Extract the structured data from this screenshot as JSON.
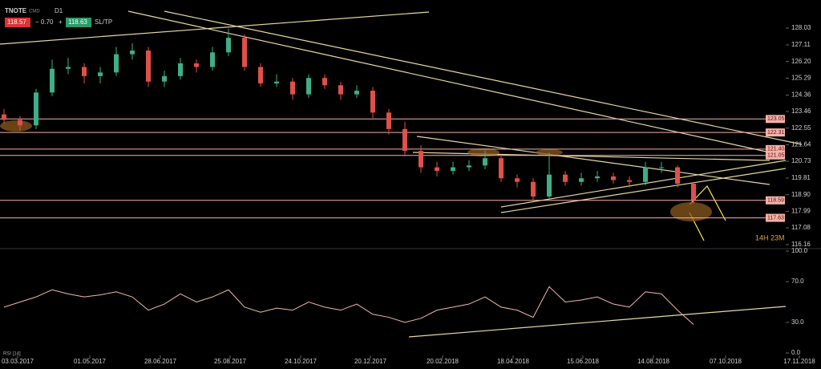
{
  "toolbar": {
    "symbol": "TNOTE",
    "market": "CMD",
    "timeframe": "D1",
    "bid": "118.57",
    "change": "− 0.70",
    "plus": "+",
    "ask": "118.63",
    "sltp": "SL/TP"
  },
  "chart_data": [
    {
      "type": "candlestick",
      "annotation": "14H 23M",
      "up_color": "#3fae8a",
      "down_color": "#e0504a",
      "ohlc": [
        [
          123.3,
          123.6,
          122.8,
          123.0
        ],
        [
          123.0,
          123.2,
          122.4,
          122.7
        ],
        [
          122.7,
          124.7,
          122.5,
          124.5
        ],
        [
          124.5,
          126.3,
          124.3,
          125.8
        ],
        [
          125.8,
          126.4,
          125.5,
          125.9
        ],
        [
          125.9,
          126.1,
          125.0,
          125.4
        ],
        [
          125.4,
          125.9,
          125.0,
          125.6
        ],
        [
          125.6,
          127.0,
          125.4,
          126.6
        ],
        [
          126.6,
          127.2,
          126.3,
          126.8
        ],
        [
          126.8,
          127.0,
          124.8,
          125.1
        ],
        [
          125.1,
          125.7,
          124.8,
          125.4
        ],
        [
          125.4,
          126.4,
          125.2,
          126.1
        ],
        [
          126.1,
          126.3,
          125.6,
          125.9
        ],
        [
          125.9,
          127.0,
          125.7,
          126.7
        ],
        [
          126.7,
          128.0,
          126.5,
          127.5
        ],
        [
          127.5,
          127.7,
          125.7,
          125.9
        ],
        [
          125.9,
          126.1,
          124.8,
          125.0
        ],
        [
          125.0,
          125.5,
          124.8,
          125.1
        ],
        [
          125.1,
          125.3,
          124.1,
          124.4
        ],
        [
          124.4,
          125.5,
          124.2,
          125.3
        ],
        [
          125.3,
          125.5,
          124.7,
          124.9
        ],
        [
          124.9,
          125.1,
          124.1,
          124.4
        ],
        [
          124.4,
          124.9,
          124.2,
          124.6
        ],
        [
          124.6,
          124.8,
          123.1,
          123.4
        ],
        [
          123.4,
          123.6,
          122.2,
          122.5
        ],
        [
          122.5,
          122.9,
          121.0,
          121.3
        ],
        [
          121.3,
          121.6,
          120.1,
          120.4
        ],
        [
          120.4,
          120.7,
          119.9,
          120.2
        ],
        [
          120.2,
          120.7,
          120.0,
          120.4
        ],
        [
          120.4,
          120.8,
          120.2,
          120.5
        ],
        [
          120.5,
          121.3,
          120.3,
          120.9
        ],
        [
          120.9,
          121.1,
          119.6,
          119.8
        ],
        [
          119.8,
          120.0,
          119.3,
          119.6
        ],
        [
          119.6,
          119.8,
          118.6,
          118.8
        ],
        [
          118.8,
          121.2,
          118.7,
          120.0
        ],
        [
          120.0,
          120.2,
          119.4,
          119.6
        ],
        [
          119.6,
          120.1,
          119.4,
          119.8
        ],
        [
          119.8,
          120.2,
          119.6,
          119.9
        ],
        [
          119.9,
          120.1,
          119.5,
          119.7
        ],
        [
          119.7,
          119.9,
          119.3,
          119.6
        ],
        [
          119.6,
          120.7,
          119.4,
          120.4
        ],
        [
          120.4,
          120.7,
          120.1,
          120.4
        ],
        [
          120.4,
          120.5,
          119.3,
          119.5
        ],
        [
          119.5,
          119.6,
          118.4,
          118.6
        ]
      ],
      "xlim": [
        -0.25,
        50.95
      ],
      "xticks": [
        {
          "value": 0.85,
          "label": "03.03.2017"
        },
        {
          "value": 5.35,
          "label": "01.05.2017"
        },
        {
          "value": 9.75,
          "label": "28.06.2017"
        },
        {
          "value": 14.1,
          "label": "25.08.2017"
        },
        {
          "value": 18.5,
          "label": "24.10.2017"
        },
        {
          "value": 22.85,
          "label": "20.12.2017"
        },
        {
          "value": 27.35,
          "label": "20.02.2018"
        },
        {
          "value": 31.75,
          "label": "18.04.2018"
        },
        {
          "value": 36.1,
          "label": "15.06.2018"
        },
        {
          "value": 40.5,
          "label": "14.08.2018"
        },
        {
          "value": 45.0,
          "label": "07.10.2018"
        },
        {
          "value": 49.6,
          "label": "17.11.2018"
        }
      ],
      "ylim": [
        115.94,
        129.22
      ],
      "yticks": [
        128.03,
        127.11,
        {
          "value": 126.2,
          "label": "126.20"
        },
        125.29,
        124.36,
        123.46,
        122.55,
        121.64,
        120.73,
        119.81,
        {
          "value": 118.9,
          "label": "118.90"
        },
        117.99,
        117.08,
        116.16
      ],
      "levels": [
        123.05,
        122.31,
        {
          "value": 121.4,
          "label": "121.40"
        },
        121.05,
        118.59,
        117.63
      ],
      "level_color": "#f3b3ab"
    },
    {
      "type": "line",
      "title": "RSI [14]",
      "color": "#f2b8b0",
      "values": [
        45,
        50,
        55,
        62,
        58,
        55,
        57,
        60,
        55,
        42,
        48,
        58,
        50,
        55,
        62,
        45,
        40,
        44,
        42,
        50,
        45,
        42,
        48,
        38,
        35,
        30,
        34,
        42,
        45,
        48,
        55,
        45,
        42,
        35,
        65,
        50,
        52,
        55,
        48,
        45,
        60,
        58,
        42,
        28
      ],
      "ylim": [
        0,
        100
      ],
      "yticks": [
        {
          "value": 100,
          "label": "100.0"
        },
        {
          "value": 70,
          "label": "70.0"
        },
        {
          "value": 30,
          "label": "30.0"
        },
        {
          "value": 0,
          "label": "0.0"
        }
      ]
    }
  ]
}
